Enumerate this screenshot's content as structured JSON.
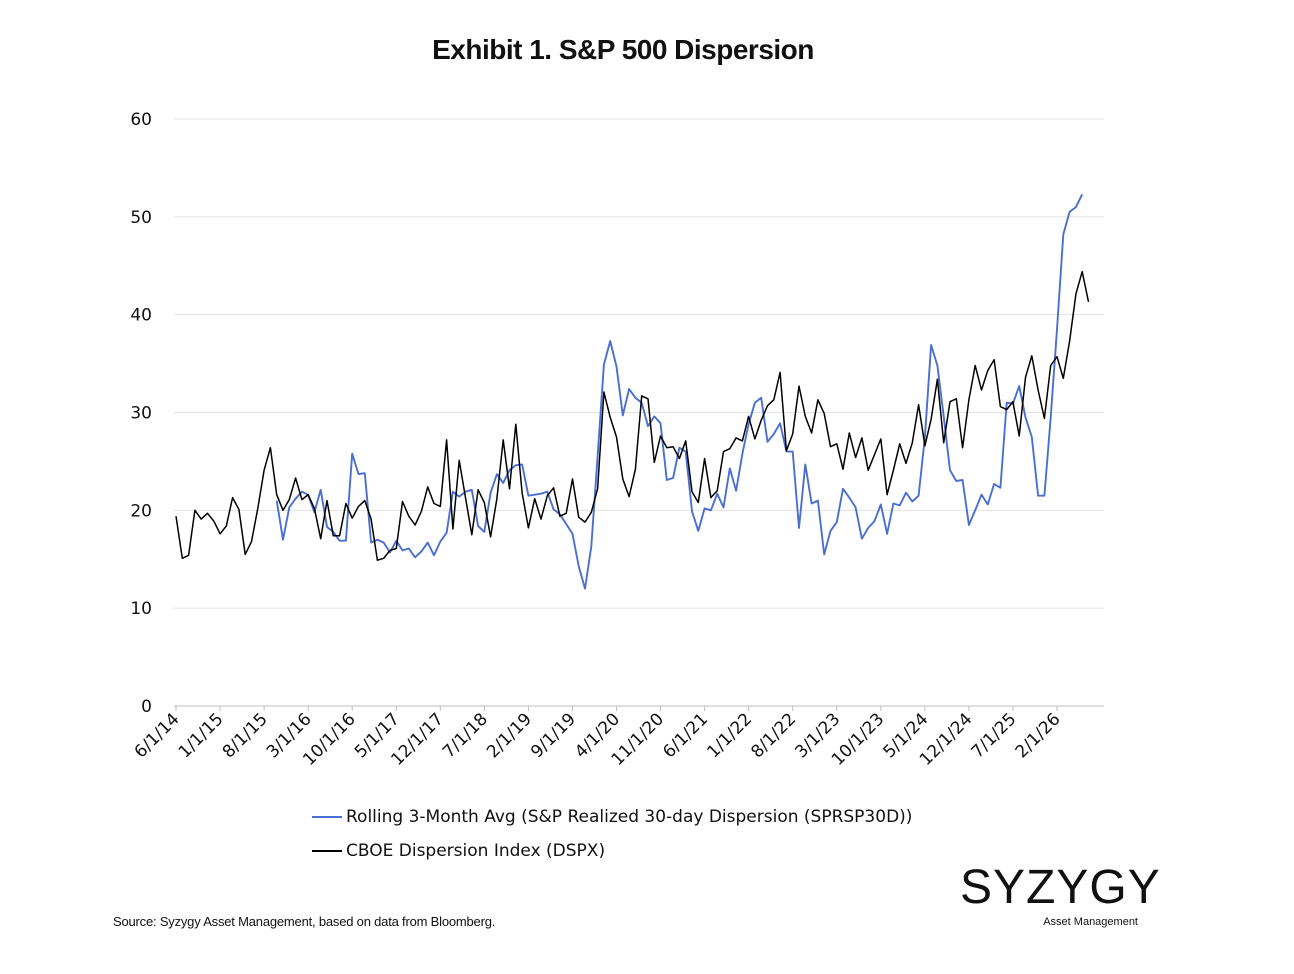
{
  "chart_data": {
    "type": "line",
    "title": "Exhibit 1. S&P 500 Dispersion",
    "xlabel": "",
    "ylabel": "",
    "ylim": [
      0,
      60
    ],
    "yticks": [
      0,
      10,
      20,
      30,
      40,
      50,
      60
    ],
    "x_tick_labels": [
      "6/1/14",
      "1/1/15",
      "8/1/15",
      "3/1/16",
      "10/1/16",
      "5/1/17",
      "12/1/17",
      "7/1/18",
      "2/1/19",
      "9/1/19",
      "4/1/20",
      "11/1/20",
      "6/1/21",
      "1/1/22",
      "8/1/22",
      "3/1/23",
      "10/1/23",
      "5/1/24",
      "12/1/24",
      "7/1/25",
      "2/1/26"
    ],
    "grid": "horizontal",
    "legend_position": "bottom",
    "series": [
      {
        "name": "Rolling 3-Month Avg (S&P Realized 30-day Dispersion (SPRSP30D))",
        "color": "#4a6fd1",
        "start": "2015-10-01",
        "values": [
          21,
          17,
          20.3,
          21.2,
          21.9,
          21.6,
          19.8,
          22.1,
          18.3,
          17.8,
          16.9,
          16.9,
          25.8,
          23.7,
          23.8,
          16.7,
          17,
          16.7,
          15.7,
          16.9,
          15.9,
          16.1,
          15.2,
          15.8,
          16.7,
          15.4,
          16.8,
          17.7,
          21.9,
          21.4,
          21.9,
          22.1,
          18.4,
          17.8,
          21.8,
          23.7,
          22.8,
          24.1,
          24.6,
          24.7,
          21.5,
          21.6,
          21.7,
          21.9,
          20.1,
          19.6,
          18.6,
          17.6,
          14.3,
          12,
          16.3,
          25.5,
          34.9,
          37.3,
          34.7,
          29.7,
          32.4,
          31.5,
          31,
          28.6,
          29.6,
          28.9,
          23.1,
          23.3,
          26.4,
          26,
          19.9,
          17.9,
          20.2,
          20,
          21.7,
          20.3,
          24.3,
          22,
          25.8,
          28.8,
          31,
          31.5,
          27,
          27.8,
          28.9,
          26,
          26,
          18.2,
          24.7,
          20.7,
          21,
          15.5,
          17.9,
          18.8,
          22.2,
          21.3,
          20.3,
          17.1,
          18.2,
          18.9,
          20.6,
          17.6,
          20.7,
          20.5,
          21.8,
          20.9,
          21.5,
          27.5,
          36.9,
          34.8,
          29.6,
          24.1,
          23,
          23.1,
          18.5,
          20,
          21.6,
          20.6,
          22.7,
          22.3,
          31,
          30.9,
          32.7,
          29.5,
          27.5,
          21.5,
          21.5,
          29.5,
          38.5,
          48.2,
          50.5,
          51,
          52.3
        ]
      },
      {
        "name": "CBOE Dispersion Index (DSPX)",
        "color": "#000000",
        "start": "2014-06-01",
        "values": [
          19.4,
          15.1,
          15.4,
          20,
          19.1,
          19.7,
          18.9,
          17.6,
          18.4,
          21.3,
          20.1,
          15.5,
          16.8,
          20.2,
          24.1,
          26.4,
          21.6,
          20,
          21.1,
          23.3,
          21.1,
          21.6,
          20.2,
          17.1,
          21,
          17.4,
          17.4,
          20.7,
          19.2,
          20.4,
          21,
          19.1,
          14.9,
          15.1,
          15.9,
          16.1,
          20.9,
          19.4,
          18.5,
          19.9,
          22.4,
          20.7,
          20.4,
          27.2,
          18.1,
          25.1,
          21.3,
          17.5,
          22.1,
          20.8,
          17.3,
          21.2,
          27.2,
          22.2,
          28.8,
          21.8,
          18.2,
          21.2,
          19.1,
          21.5,
          22.3,
          19.4,
          19.7,
          23.2,
          19.3,
          18.8,
          19.8,
          22.2,
          32.1,
          29.5,
          27.5,
          23.2,
          21.4,
          24.2,
          31.7,
          31.4,
          24.9,
          27.6,
          26.4,
          26.5,
          25.3,
          27.1,
          21.9,
          20.8,
          25.3,
          21.3,
          22,
          26,
          26.3,
          27.4,
          27.1,
          29.6,
          27.3,
          29.2,
          30.7,
          31.3,
          34.1,
          26.1,
          27.8,
          32.7,
          29.6,
          27.9,
          31.3,
          29.9,
          26.5,
          26.8,
          24.2,
          27.9,
          25.4,
          27.4,
          24.1,
          25.7,
          27.3,
          21.6,
          24.1,
          26.8,
          24.8,
          26.9,
          30.8,
          26.6,
          29.3,
          33.4,
          26.9,
          31.1,
          31.4,
          26.4,
          31.3,
          34.8,
          32.3,
          34.3,
          35.4,
          30.6,
          30.3,
          31.1,
          27.6,
          33.6,
          35.8,
          32.3,
          29.4,
          34.8,
          35.7,
          33.5,
          37.3,
          42.1,
          44.4,
          41.3
        ]
      }
    ]
  },
  "legend": {
    "items": [
      {
        "label": "Rolling 3-Month Avg (S&P Realized 30-day Dispersion (SPRSP30D))",
        "color": "#4a6fd1"
      },
      {
        "label": "CBOE Dispersion Index (DSPX)",
        "color": "#000000"
      }
    ]
  },
  "footer": {
    "source": "Source: Syzygy Asset Management, based on data from Bloomberg."
  },
  "logo": {
    "word": "SYZYGY",
    "sub": "Asset Management"
  }
}
